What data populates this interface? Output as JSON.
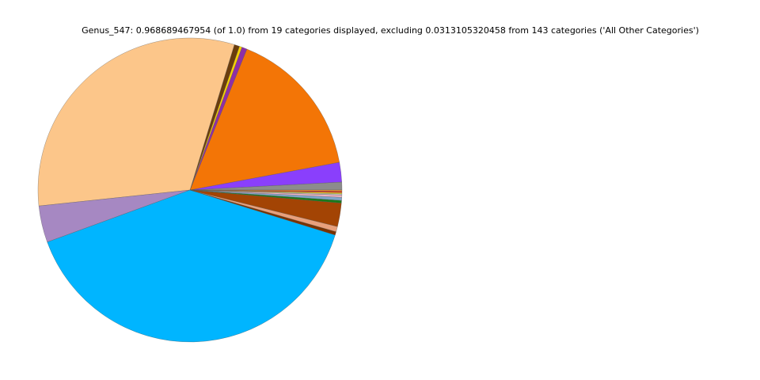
{
  "chart_data": {
    "type": "pie",
    "title": "Genus_547: 0.968689467954 (of 1.0) from 19 categories displayed, excluding 0.0313105320458 from 143 categories ('All Other Categories')",
    "values": [
      0.0081,
      0.0202,
      0.1547,
      0.0054,
      0.0027,
      0.0054,
      0.3041,
      0.0377,
      0.384,
      0.0035,
      0.0054,
      0.0242,
      0.0027,
      0.0032,
      0.0022,
      0.0013,
      0.0013,
      0.0013,
      0.0013
    ],
    "colors": [
      "#8c8c8c",
      "#8a3ffc",
      "#f37506",
      "#8e2fa6",
      "#f5d000",
      "#6b3d0c",
      "#fcc68a",
      "#a688c2",
      "#00b5ff",
      "#7a3300",
      "#e8a07c",
      "#a34404",
      "#1a7a1a",
      "#7fa6c9",
      "#f2b5c8",
      "#c0c0c0",
      "#f0e020",
      "#e0201a",
      "#f09030"
    ],
    "start_angle": 0,
    "counterclock": true
  }
}
